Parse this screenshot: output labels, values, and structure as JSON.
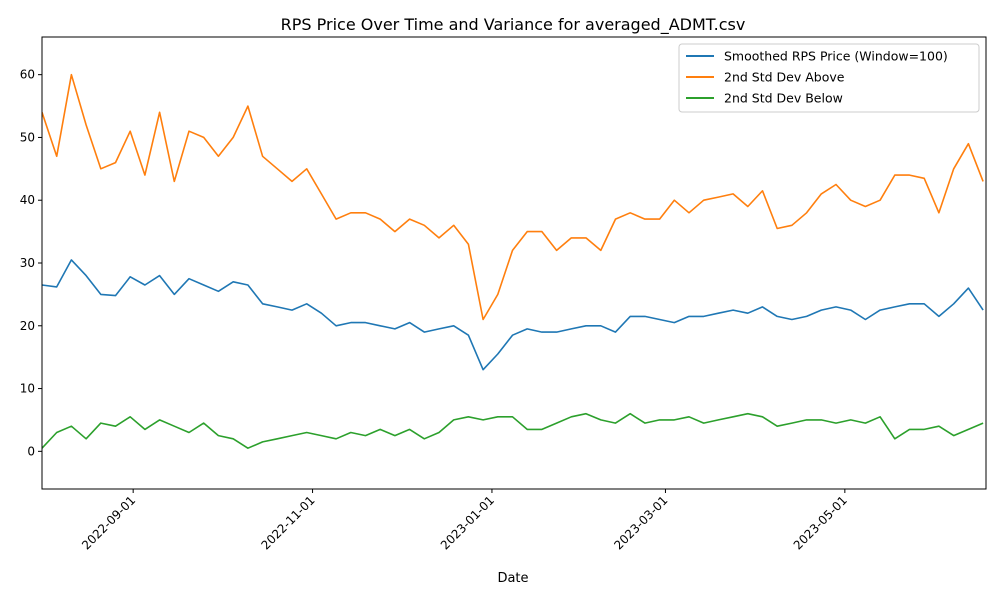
{
  "chart_data": {
    "type": "line",
    "title": "RPS Price Over Time and Variance for averaged_ADMT.csv",
    "xlabel": "Date",
    "ylabel": "",
    "x_type": "date",
    "xlim": [
      "2022-08-01",
      "2023-06-18"
    ],
    "ylim": [
      -6,
      66
    ],
    "xticks": [
      "2022-09-01",
      "2022-11-01",
      "2023-01-01",
      "2023-03-01",
      "2023-05-01"
    ],
    "yticks": [
      0,
      10,
      20,
      30,
      40,
      50,
      60
    ],
    "grid": false,
    "legend_position": "top-right",
    "x": [
      "2022-08-01",
      "2022-08-06",
      "2022-08-11",
      "2022-08-16",
      "2022-08-21",
      "2022-08-26",
      "2022-08-31",
      "2022-09-05",
      "2022-09-10",
      "2022-09-15",
      "2022-09-20",
      "2022-09-25",
      "2022-09-30",
      "2022-10-05",
      "2022-10-10",
      "2022-10-15",
      "2022-10-20",
      "2022-10-25",
      "2022-10-30",
      "2022-11-04",
      "2022-11-09",
      "2022-11-14",
      "2022-11-19",
      "2022-11-24",
      "2022-11-29",
      "2022-12-04",
      "2022-12-09",
      "2022-12-14",
      "2022-12-19",
      "2022-12-24",
      "2022-12-29",
      "2023-01-03",
      "2023-01-08",
      "2023-01-13",
      "2023-01-18",
      "2023-01-23",
      "2023-01-28",
      "2023-02-02",
      "2023-02-07",
      "2023-02-12",
      "2023-02-17",
      "2023-02-22",
      "2023-02-27",
      "2023-03-04",
      "2023-03-09",
      "2023-03-14",
      "2023-03-19",
      "2023-03-24",
      "2023-03-29",
      "2023-04-03",
      "2023-04-08",
      "2023-04-13",
      "2023-04-18",
      "2023-04-23",
      "2023-04-28",
      "2023-05-03",
      "2023-05-08",
      "2023-05-13",
      "2023-05-18",
      "2023-05-23",
      "2023-05-28",
      "2023-06-02",
      "2023-06-07",
      "2023-06-12",
      "2023-06-17"
    ],
    "series": [
      {
        "name": "Smoothed RPS Price (Window=100)",
        "color": "#1f77b4",
        "values": [
          26.5,
          26.2,
          30.5,
          28.0,
          25.0,
          24.8,
          27.8,
          26.5,
          28.0,
          25.0,
          27.5,
          26.5,
          25.5,
          27.0,
          26.5,
          23.5,
          23.0,
          22.5,
          23.5,
          22.0,
          20.0,
          20.5,
          20.5,
          20.0,
          19.5,
          20.5,
          19.0,
          19.5,
          20.0,
          18.5,
          13.0,
          15.5,
          18.5,
          19.5,
          19.0,
          19.0,
          19.5,
          20.0,
          20.0,
          19.0,
          21.5,
          21.5,
          21.0,
          20.5,
          21.5,
          21.5,
          22.0,
          22.5,
          22.0,
          23.0,
          21.5,
          21.0,
          21.5,
          22.5,
          23.0,
          22.5,
          21.0,
          22.5,
          23.0,
          23.5,
          23.5,
          21.5,
          23.5,
          26.0,
          22.5
        ]
      },
      {
        "name": "2nd Std Dev Above",
        "color": "#ff7f0e",
        "values": [
          54.0,
          47.0,
          60.0,
          52.0,
          45.0,
          46.0,
          51.0,
          44.0,
          54.0,
          43.0,
          51.0,
          50.0,
          47.0,
          50.0,
          55.0,
          47.0,
          45.0,
          43.0,
          45.0,
          41.0,
          37.0,
          38.0,
          38.0,
          37.0,
          35.0,
          37.0,
          36.0,
          34.0,
          36.0,
          33.0,
          21.0,
          25.0,
          32.0,
          35.0,
          35.0,
          32.0,
          34.0,
          34.0,
          32.0,
          37.0,
          38.0,
          37.0,
          37.0,
          40.0,
          38.0,
          40.0,
          40.5,
          41.0,
          39.0,
          41.5,
          35.5,
          36.0,
          38.0,
          41.0,
          42.5,
          40.0,
          39.0,
          40.0,
          44.0,
          44.0,
          43.5,
          38.0,
          45.0,
          49.0,
          43.0
        ]
      },
      {
        "name": "2nd Std Dev Below",
        "color": "#2ca02c",
        "values": [
          0.5,
          3.0,
          4.0,
          2.0,
          4.5,
          4.0,
          5.5,
          3.5,
          5.0,
          4.0,
          3.0,
          4.5,
          2.5,
          2.0,
          0.5,
          1.5,
          2.0,
          2.5,
          3.0,
          2.5,
          2.0,
          3.0,
          2.5,
          3.5,
          2.5,
          3.5,
          2.0,
          3.0,
          5.0,
          5.5,
          5.0,
          5.5,
          5.5,
          3.5,
          3.5,
          4.5,
          5.5,
          6.0,
          5.0,
          4.5,
          6.0,
          4.5,
          5.0,
          5.0,
          5.5,
          4.5,
          5.0,
          5.5,
          6.0,
          5.5,
          4.0,
          4.5,
          5.0,
          5.0,
          4.5,
          5.0,
          4.5,
          5.5,
          2.0,
          3.5,
          3.5,
          4.0,
          2.5,
          3.5,
          4.5
        ]
      }
    ]
  }
}
